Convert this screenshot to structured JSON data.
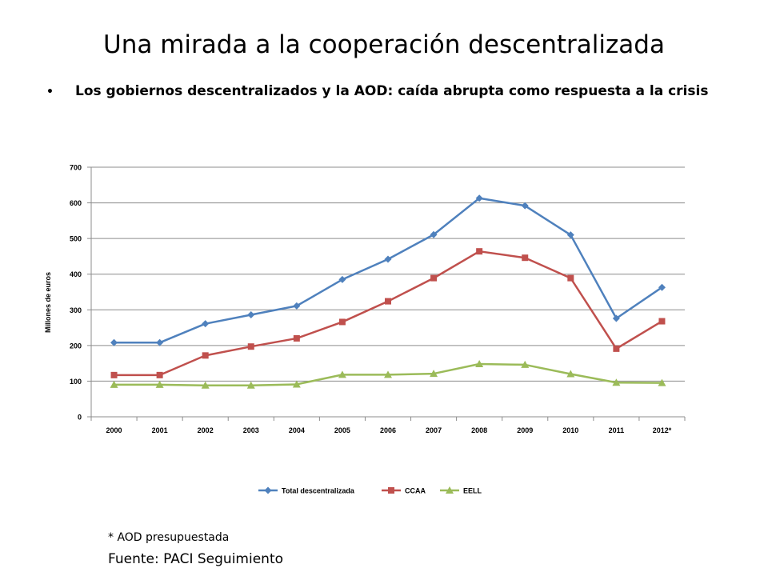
{
  "slide": {
    "title": "Una mirada a la cooperación descentralizada",
    "bullet_symbol": "•",
    "bullet_text": "Los gobiernos descentralizados y la AOD: caída abrupta como respuesta a la crisis",
    "footnote": "* AOD presupuestada",
    "source": "Fuente: PACI Seguimiento"
  },
  "chart_data": {
    "type": "line",
    "title": "",
    "xlabel": "",
    "ylabel": "Millones de euros",
    "categories": [
      "2000",
      "2001",
      "2002",
      "2003",
      "2004",
      "2005",
      "2006",
      "2007",
      "2008",
      "2009",
      "2010",
      "2011",
      "2012*"
    ],
    "ylim": [
      0,
      700
    ],
    "yticks": [
      0,
      100,
      200,
      300,
      400,
      500,
      600,
      700
    ],
    "grid": true,
    "legend_position": "bottom",
    "series": [
      {
        "name": "Total descentralizada",
        "color": "#4F81BD",
        "marker": "diamond",
        "values": [
          208,
          208,
          261,
          286,
          311,
          385,
          442,
          511,
          613,
          592,
          510,
          276,
          363
        ]
      },
      {
        "name": "CCAA",
        "color": "#C0504D",
        "marker": "square",
        "values": [
          117,
          117,
          172,
          197,
          220,
          266,
          324,
          389,
          464,
          446,
          389,
          191,
          268
        ]
      },
      {
        "name": "EELL",
        "color": "#9BBB59",
        "marker": "triangle",
        "values": [
          90,
          90,
          88,
          88,
          91,
          118,
          118,
          121,
          148,
          146,
          120,
          96,
          95
        ]
      }
    ]
  }
}
